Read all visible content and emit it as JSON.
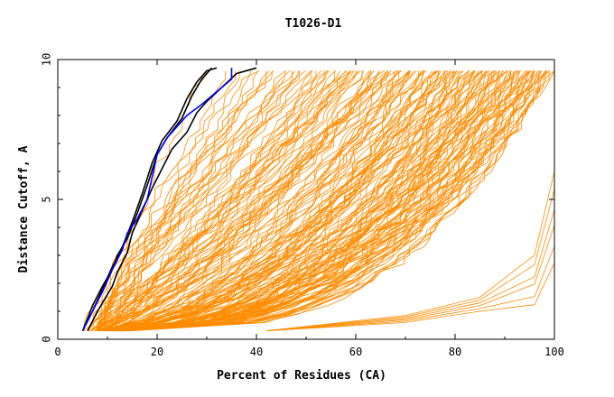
{
  "chart_data": {
    "type": "line",
    "title": "T1026-D1",
    "xlabel": "Percent of Residues (CA)",
    "ylabel": "Distance Cutoff, A",
    "xlim": [
      0,
      100
    ],
    "ylim": [
      0,
      10
    ],
    "x_ticks": [
      "0",
      "20",
      "40",
      "60",
      "80",
      "100"
    ],
    "y_ticks": [
      "0",
      "5",
      "10"
    ],
    "grid": false,
    "colors": {
      "background_series": "#ff8c00",
      "highlight_black": "#000000",
      "highlight_blue": "#0000ff",
      "frame": "#000000"
    },
    "highlight_series": [
      {
        "color": "black",
        "points": [
          [
            5,
            0.3
          ],
          [
            7,
            1.0
          ],
          [
            9,
            1.8
          ],
          [
            11,
            2.6
          ],
          [
            13,
            3.3
          ],
          [
            15,
            4.2
          ],
          [
            17,
            5.2
          ],
          [
            19,
            6.3
          ],
          [
            21,
            7.1
          ],
          [
            24,
            7.8
          ],
          [
            26,
            8.6
          ],
          [
            28,
            9.2
          ],
          [
            30,
            9.6
          ],
          [
            32,
            9.7
          ]
        ]
      },
      {
        "color": "black",
        "points": [
          [
            5,
            0.3
          ],
          [
            7,
            1.2
          ],
          [
            9,
            1.9
          ],
          [
            11,
            2.5
          ],
          [
            12,
            3.0
          ],
          [
            14,
            3.6
          ],
          [
            16,
            4.5
          ],
          [
            18,
            5.5
          ],
          [
            20,
            6.6
          ],
          [
            22,
            7.2
          ],
          [
            25,
            7.9
          ],
          [
            27,
            8.7
          ],
          [
            29,
            9.3
          ],
          [
            31,
            9.7
          ]
        ]
      },
      {
        "color": "black",
        "points": [
          [
            6,
            0.3
          ],
          [
            8,
            1.0
          ],
          [
            10,
            1.6
          ],
          [
            11,
            1.9
          ],
          [
            12,
            2.4
          ],
          [
            14,
            3.1
          ],
          [
            15,
            3.8
          ],
          [
            17,
            4.6
          ],
          [
            19,
            5.4
          ],
          [
            21,
            6.1
          ],
          [
            23,
            6.8
          ],
          [
            26,
            7.4
          ],
          [
            28,
            8.1
          ],
          [
            30,
            8.5
          ],
          [
            33,
            9.0
          ],
          [
            36,
            9.5
          ],
          [
            40,
            9.7
          ]
        ]
      },
      {
        "color": "blue",
        "points": [
          [
            5,
            0.3
          ],
          [
            7,
            1.0
          ],
          [
            9,
            1.7
          ],
          [
            11,
            2.5
          ],
          [
            13,
            3.2
          ],
          [
            14,
            3.8
          ],
          [
            16,
            4.3
          ],
          [
            18,
            5.0
          ],
          [
            19,
            5.8
          ],
          [
            20,
            6.6
          ],
          [
            22,
            7.2
          ],
          [
            24,
            7.6
          ],
          [
            26,
            8.0
          ],
          [
            29,
            8.4
          ],
          [
            31,
            8.7
          ],
          [
            33,
            9.0
          ],
          [
            35,
            9.3
          ],
          [
            35,
            9.7
          ]
        ]
      }
    ],
    "background_series_description": "many orange model curves spanning 0–100% residues at cutoffs 0.3–9.7 A"
  }
}
